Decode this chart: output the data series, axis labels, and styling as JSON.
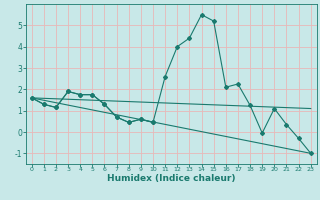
{
  "xlabel": "Humidex (Indice chaleur)",
  "x_values": [
    0,
    1,
    2,
    3,
    4,
    5,
    6,
    7,
    8,
    9,
    10,
    11,
    12,
    13,
    14,
    15,
    16,
    17,
    18,
    19,
    20,
    21,
    22,
    23
  ],
  "main_line_y": [
    1.6,
    1.3,
    1.15,
    1.9,
    1.75,
    1.75,
    1.3,
    0.7,
    0.45,
    0.6,
    0.45,
    2.6,
    4.0,
    4.4,
    5.5,
    5.2,
    2.1,
    2.25,
    1.25,
    -0.05,
    1.1,
    0.35,
    -0.3,
    -1.0
  ],
  "early_line_x": [
    0,
    1,
    2,
    3,
    4,
    5,
    6,
    7,
    8,
    9,
    10
  ],
  "early_line_y": [
    1.6,
    1.3,
    1.15,
    1.9,
    1.75,
    1.75,
    1.3,
    0.7,
    0.45,
    0.6,
    0.45
  ],
  "straight_line_x": [
    0,
    23
  ],
  "straight_line_y": [
    1.6,
    1.1
  ],
  "diagonal_line_x": [
    0,
    23
  ],
  "diagonal_line_y": [
    1.6,
    -1.0
  ],
  "color": "#1a7a6e",
  "bg_color": "#c8e8e8",
  "grid_color": "#e8b8b8",
  "ylim": [
    -1.5,
    6.0
  ],
  "xlim": [
    -0.5,
    23.5
  ],
  "yticks": [
    -1,
    0,
    1,
    2,
    3,
    4,
    5
  ],
  "xticks": [
    0,
    1,
    2,
    3,
    4,
    5,
    6,
    7,
    8,
    9,
    10,
    11,
    12,
    13,
    14,
    15,
    16,
    17,
    18,
    19,
    20,
    21,
    22,
    23
  ],
  "marker": "D",
  "markersize": 2.0,
  "linewidth": 0.8
}
